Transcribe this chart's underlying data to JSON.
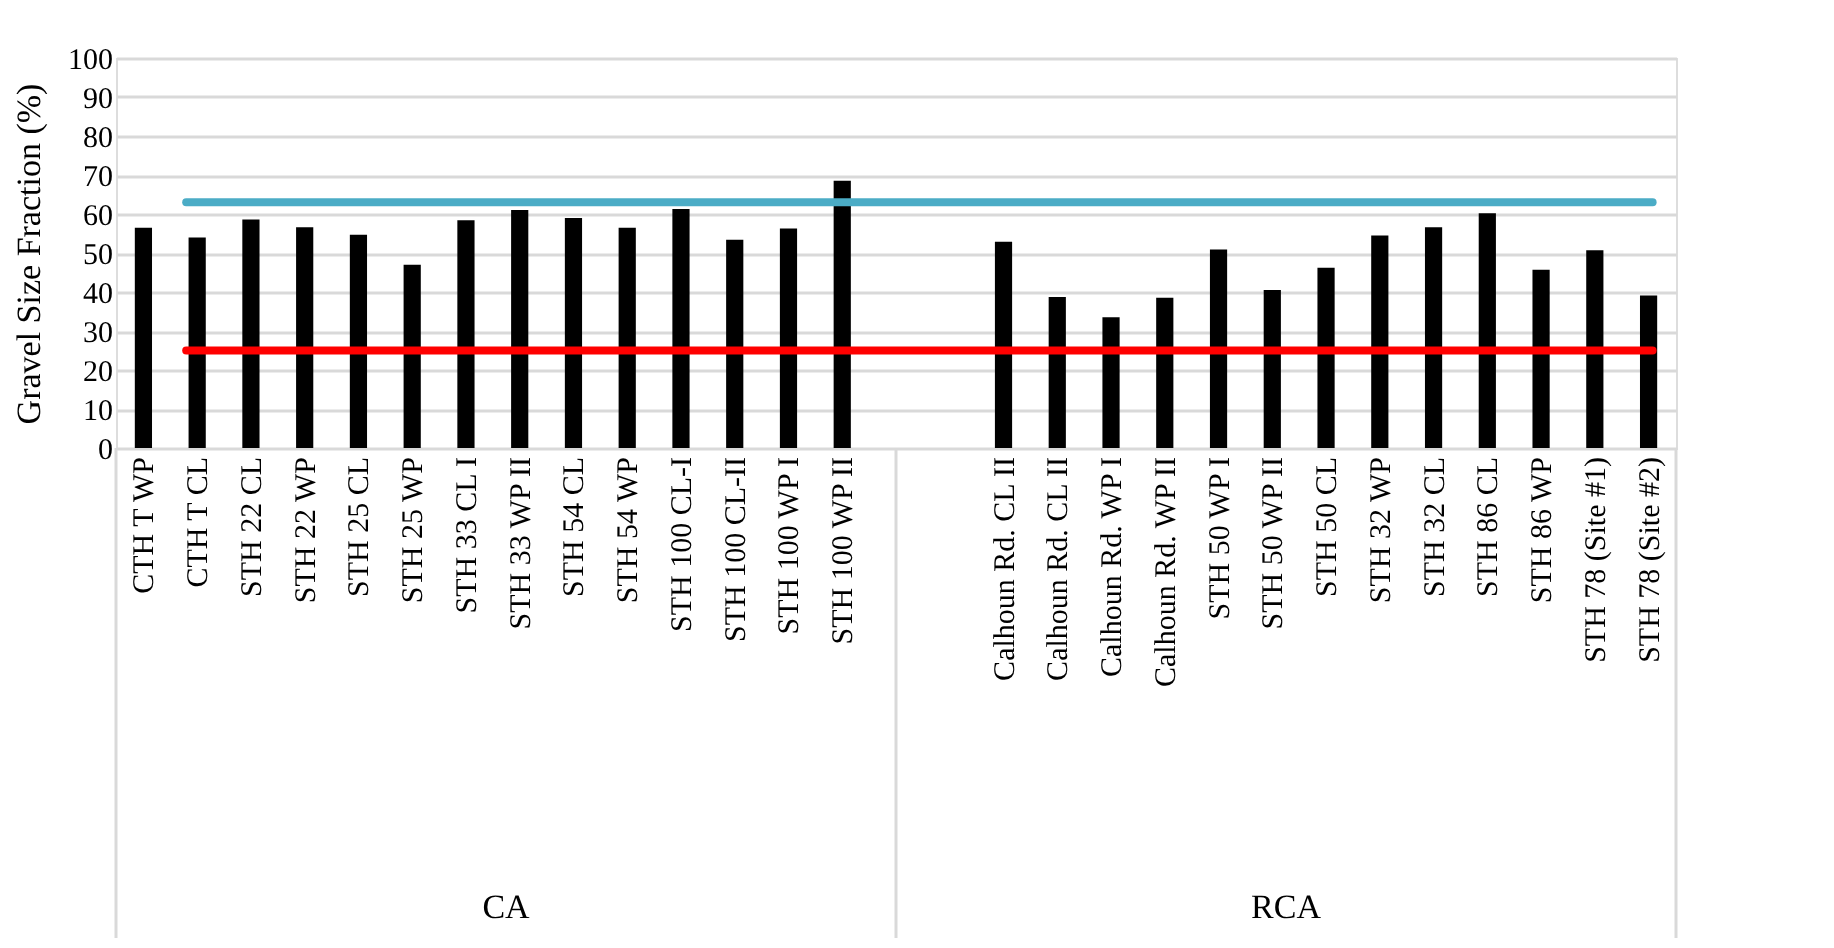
{
  "chart_data": {
    "type": "bar",
    "ylabel": "Gravel Size Fraction (%)",
    "categories": [
      "CTH T WP",
      "CTH T CL",
      "STH 22 CL",
      "STH 22 WP",
      "STH 25 CL",
      "STH 25 WP",
      "STH 33 CL I",
      "STH 33 WP II",
      "STH 54 CL",
      "STH 54 WP",
      "STH 100 CL-I",
      "STH 100 CL-II",
      "STH 100 WP I",
      "STH 100 WP II",
      null,
      null,
      "Calhoun Rd. CL II",
      "Calhoun Rd. CL II",
      "Calhoun Rd. WP I",
      "Calhoun Rd. WP II",
      "STH 50 WP I",
      "STH 50 WP II",
      "STH 50 CL",
      "STH 32 WP",
      "STH 32 CL",
      "STH 86 CL",
      "STH 86 WP",
      "STH 78 (Site #1)",
      "STH 78 (Site #2)"
    ],
    "values": [
      56.5,
      54,
      58.6,
      56.6,
      54.7,
      47,
      58.4,
      61,
      59,
      56.5,
      61.3,
      53.4,
      56.3,
      68.5,
      null,
      null,
      52.9,
      38.7,
      33.5,
      38.5,
      50.9,
      40.5,
      46.2,
      54.5,
      56.6,
      60.2,
      45.7,
      50.7,
      39.1
    ],
    "color": "#000000",
    "ylim": [
      0,
      100
    ],
    "yticks": [
      0,
      10,
      20,
      30,
      40,
      50,
      60,
      70,
      80,
      90,
      100
    ],
    "grid": "y",
    "ref_lines": [
      {
        "axis": "y",
        "value": 63,
        "color": "#4bacc6"
      },
      {
        "axis": "y",
        "value": 25,
        "color": "#ff0000"
      }
    ],
    "annotations": [
      "CA",
      "RCA"
    ]
  }
}
